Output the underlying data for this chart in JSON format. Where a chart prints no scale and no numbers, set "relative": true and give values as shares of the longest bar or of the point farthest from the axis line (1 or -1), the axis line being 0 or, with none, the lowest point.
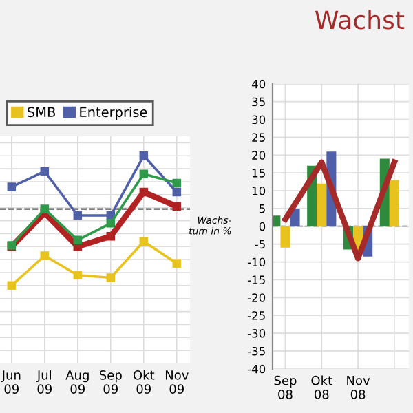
{
  "chart_data": [
    {
      "type": "line",
      "relative": true,
      "categories": [
        "Jun\n09",
        "Jul\n09",
        "Aug\n09",
        "Sep\n09",
        "Okt\n09",
        "Nov\n09"
      ],
      "series": [
        {
          "name": "SMB",
          "color": "#e8c21e",
          "values": [
            0,
            0.23,
            0.08,
            0.06,
            0.34,
            0.17
          ]
        },
        {
          "name": "Enterprise",
          "color": "#5060a8",
          "values": [
            0.76,
            0.88,
            0.54,
            0.54,
            1.0,
            0.72
          ]
        },
        {
          "color": "#2e9a4a",
          "values": [
            0.31,
            0.59,
            0.35,
            0.48,
            0.86,
            0.79
          ]
        },
        {
          "color": "#b22222",
          "values": [
            0.3,
            0.56,
            0.3,
            0.38,
            0.72,
            0.61
          ]
        }
      ],
      "ref_lines": [
        {
          "axis": "y",
          "value": 0.59,
          "color": "#555555",
          "line_style": "dashed"
        }
      ],
      "grid": true,
      "legend": "top",
      "marker": "square",
      "line_style": "solid"
    },
    {
      "type": "bar",
      "title": "Wachst",
      "ylabel": "Wachs-\ntum in %",
      "categories": [
        "Sep\n08",
        "Okt\n08",
        "Nov\n08",
        null
      ],
      "series": [
        {
          "color": "#2e8b3e",
          "values": [
            3,
            17,
            -6.5,
            19
          ]
        },
        {
          "color": "#e8c21e",
          "values": [
            -6,
            12,
            -7,
            13
          ]
        },
        {
          "color": "#5060a8",
          "values": [
            5,
            21,
            -8.5,
            null
          ]
        },
        {
          "type": "line",
          "color": "#a52a2a",
          "values": [
            2,
            18,
            -9,
            18
          ]
        }
      ],
      "ylim": [
        -40,
        40
      ],
      "yticks": [
        -40,
        -35,
        -30,
        -25,
        -20,
        -15,
        -10,
        -5,
        0,
        5,
        10,
        15,
        20,
        25,
        30,
        35,
        40
      ],
      "ref_lines": [
        {
          "axis": "y",
          "value": 0,
          "color": "#555555",
          "line_style": "dashed"
        }
      ],
      "grid": true
    }
  ]
}
